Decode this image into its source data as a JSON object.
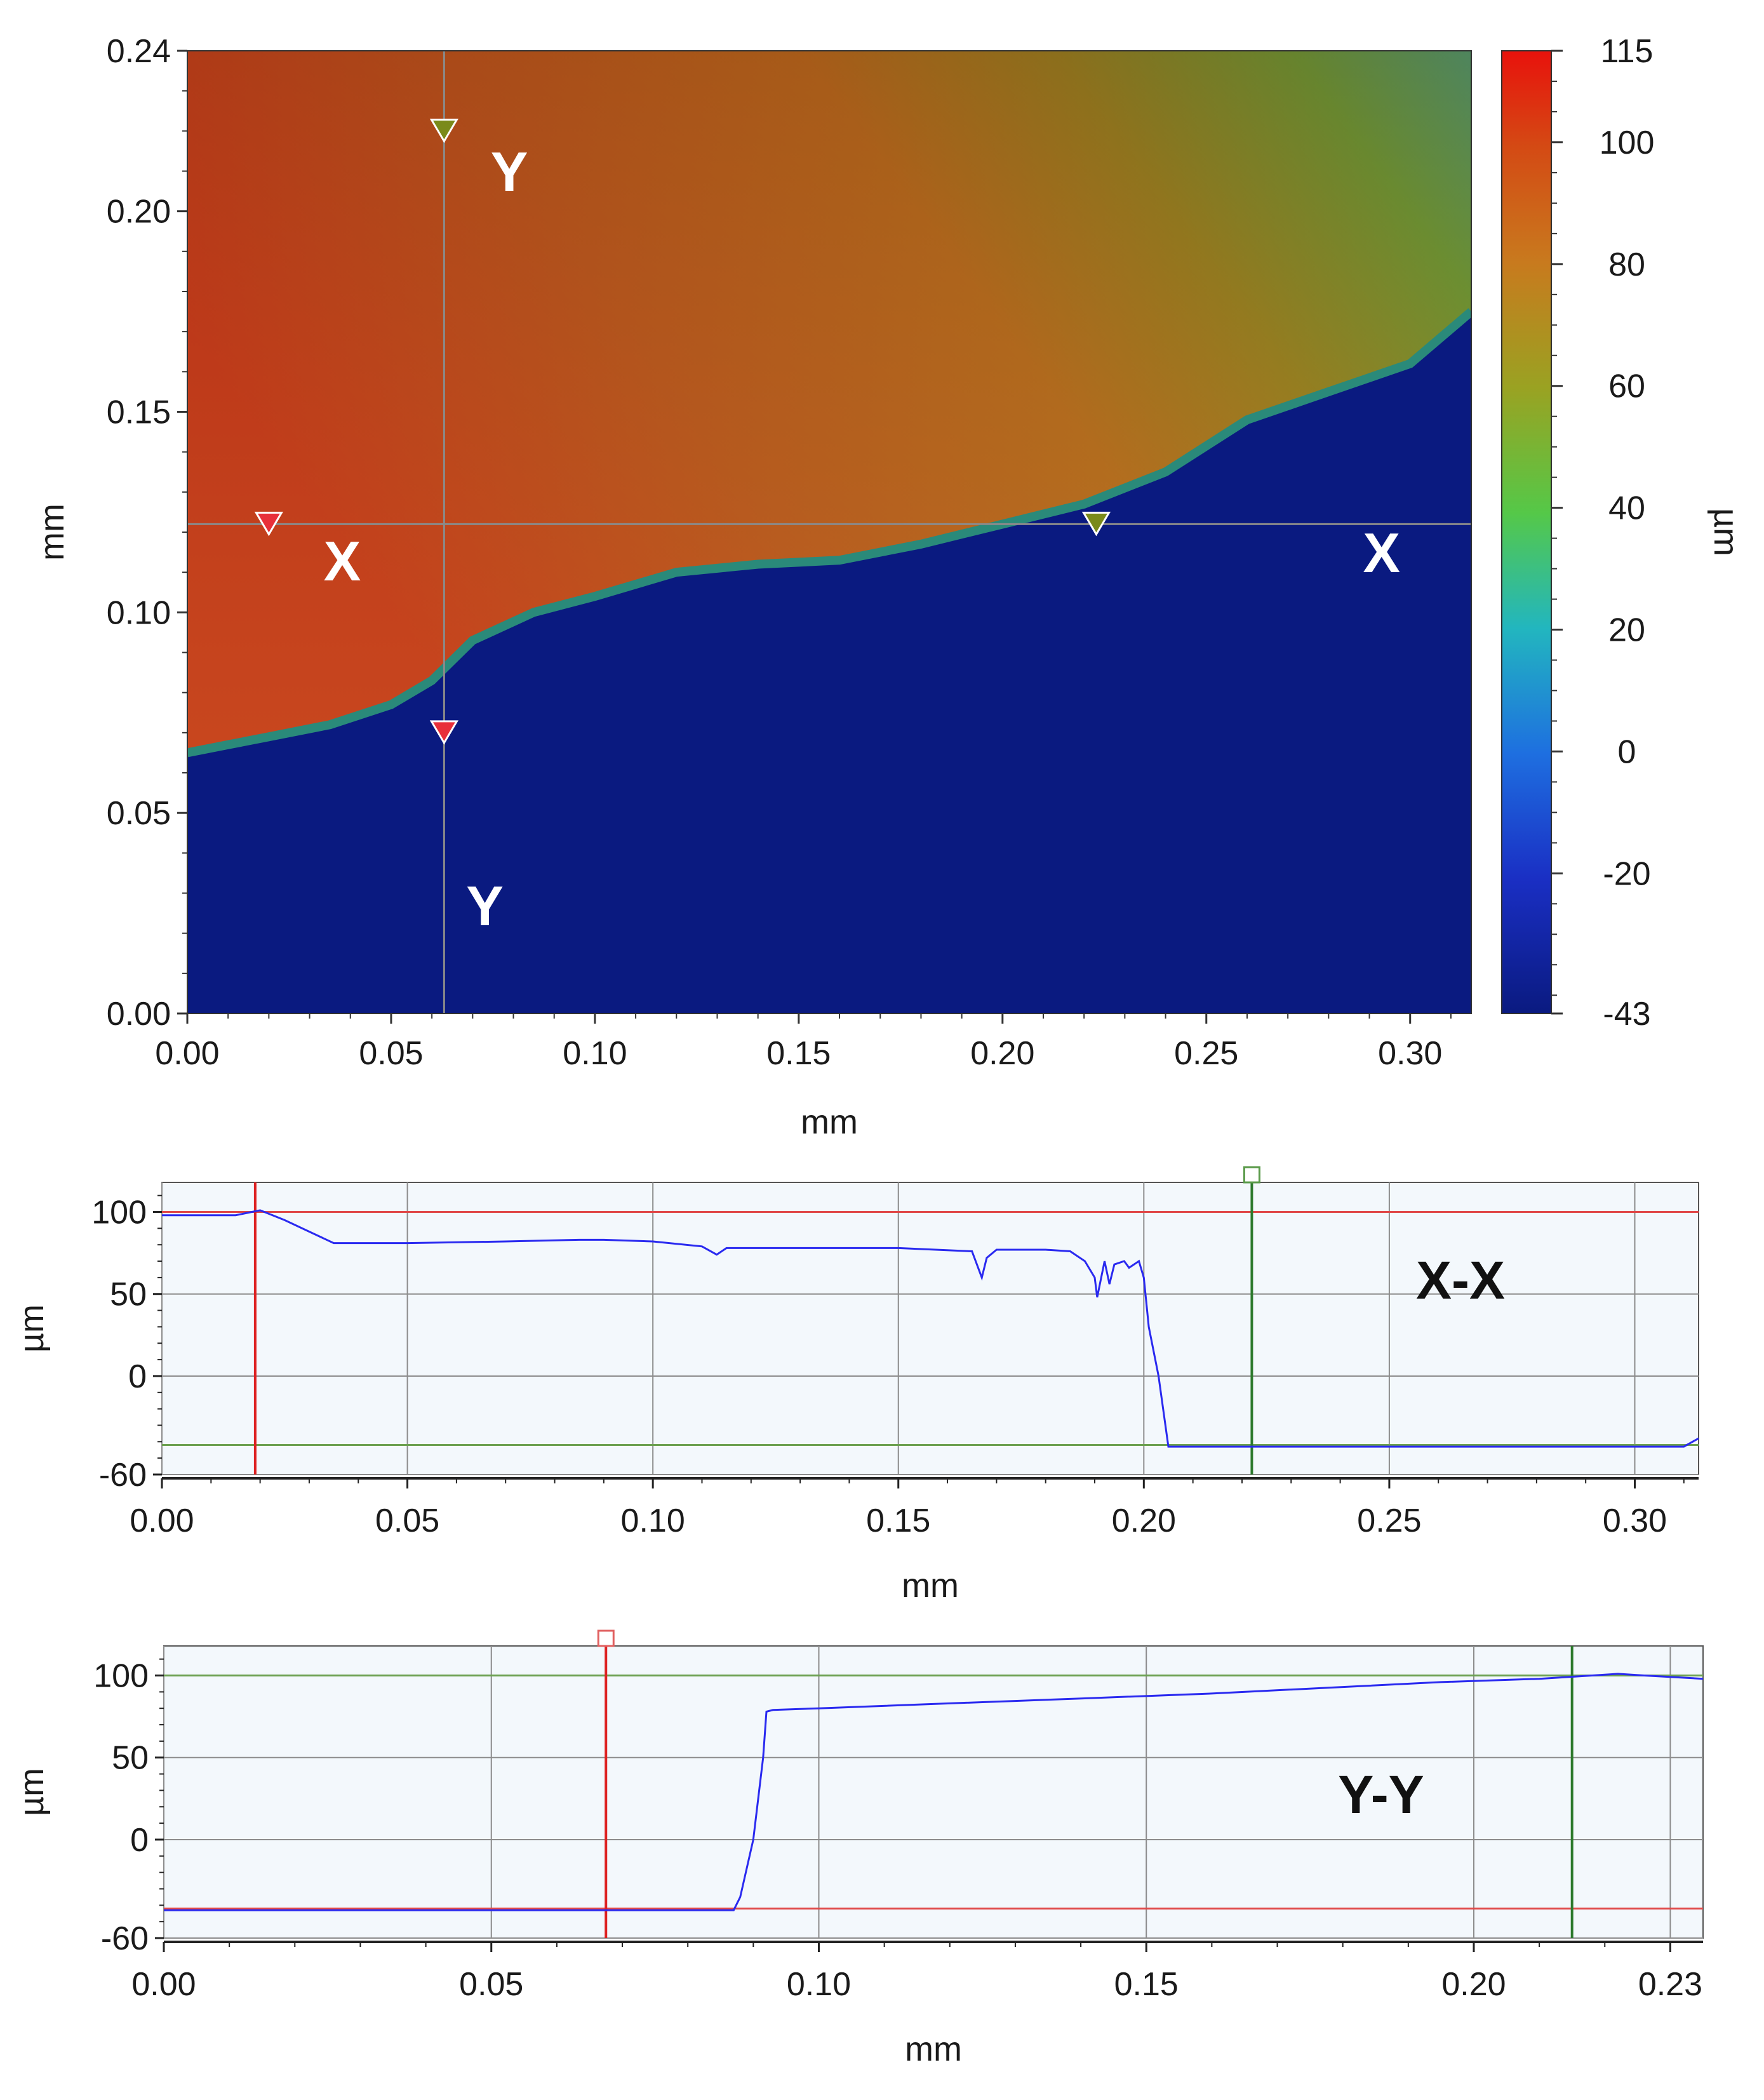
{
  "chart_data": [
    {
      "type": "heatmap",
      "title": "",
      "xlabel": "mm",
      "ylabel": "mm",
      "xlim": [
        0,
        0.315
      ],
      "ylim": [
        0,
        0.24
      ],
      "x_ticks": [
        "0.00",
        "0.05",
        "0.10",
        "0.15",
        "0.20",
        "0.25",
        "0.30"
      ],
      "y_ticks": [
        "0.00",
        "0.05",
        "0.10",
        "0.15",
        "0.20",
        "0.24"
      ],
      "colorbar": {
        "label": "µm",
        "min": -43,
        "max": 115,
        "ticks": [
          "115",
          "100",
          "80",
          "60",
          "40",
          "20",
          "0",
          "-20",
          "-43"
        ],
        "colors": [
          "#e8120c",
          "#d44a14",
          "#c87a1e",
          "#9aa222",
          "#55c848",
          "#22b6bf",
          "#1e6fe0",
          "#1a2fc4",
          "#0a1a80"
        ]
      },
      "cursor_lines": [
        {
          "name": "X",
          "axis": "y",
          "value": 0.122
        },
        {
          "name": "Y",
          "axis": "x",
          "value": 0.063
        }
      ],
      "markers": [
        {
          "line": "X",
          "x": 0.02,
          "y": 0.122,
          "color": "#e8303a"
        },
        {
          "line": "X",
          "x": 0.223,
          "y": 0.122,
          "color": "#7a8a1a"
        },
        {
          "line": "Y",
          "x": 0.063,
          "y": 0.07,
          "color": "#e8303a"
        },
        {
          "line": "Y",
          "x": 0.063,
          "y": 0.22,
          "color": "#7a8a1a"
        }
      ],
      "labels": [
        {
          "text": "X",
          "x": 0.038,
          "y": 0.108
        },
        {
          "text": "X",
          "x": 0.293,
          "y": 0.11
        },
        {
          "text": "Y",
          "x": 0.079,
          "y": 0.205
        },
        {
          "text": "Y",
          "x": 0.073,
          "y": 0.022
        }
      ],
      "edge": {
        "x": [
          0,
          0.01,
          0.02,
          0.035,
          0.05,
          0.06,
          0.07,
          0.085,
          0.1,
          0.12,
          0.14,
          0.16,
          0.18,
          0.2,
          0.22,
          0.24,
          0.26,
          0.28,
          0.3,
          0.315
        ],
        "y": [
          0.065,
          0.067,
          0.069,
          0.072,
          0.077,
          0.083,
          0.093,
          0.1,
          0.104,
          0.11,
          0.112,
          0.113,
          0.117,
          0.122,
          0.127,
          0.135,
          0.148,
          0.155,
          0.162,
          0.175
        ]
      }
    },
    {
      "type": "line",
      "title": "X-X",
      "xlabel": "mm",
      "ylabel": "µm",
      "xlim": [
        0,
        0.313
      ],
      "ylim": [
        -60,
        118
      ],
      "x_ticks": [
        "0.00",
        "0.05",
        "0.10",
        "0.15",
        "0.20",
        "0.25",
        "0.30"
      ],
      "y_ticks": [
        "100",
        "50",
        "0",
        "-60"
      ],
      "reference_lines": [
        {
          "axis": "y",
          "value": 100,
          "color": "#e04848"
        },
        {
          "axis": "y",
          "value": -42,
          "color": "#6ba050"
        },
        {
          "axis": "x",
          "value": 0.019,
          "color": "#dd2222"
        },
        {
          "axis": "x",
          "value": 0.222,
          "color": "#2d7a2d"
        }
      ],
      "handle": {
        "x": 0.222,
        "color": "#5a9a4a"
      },
      "series": [
        {
          "x": [
            0,
            0.015,
            0.02,
            0.025,
            0.03,
            0.035,
            0.05,
            0.07,
            0.085,
            0.09,
            0.1,
            0.11,
            0.113,
            0.115,
            0.13,
            0.15,
            0.165,
            0.167,
            0.168,
            0.17,
            0.175,
            0.18,
            0.185,
            0.188,
            0.19,
            0.1905,
            0.192,
            0.193,
            0.194,
            0.196,
            0.197,
            0.199,
            0.2,
            0.201,
            0.203,
            0.205,
            0.22,
            0.25,
            0.28,
            0.31,
            0.313
          ],
          "y": [
            98,
            98,
            101,
            95,
            88,
            81,
            81,
            82,
            83,
            83,
            82,
            79,
            74,
            78,
            78,
            78,
            76,
            60,
            72,
            77,
            77,
            77,
            76,
            70,
            60,
            48,
            70,
            56,
            68,
            70,
            66,
            70,
            60,
            30,
            0,
            -43,
            -43,
            -43,
            -43,
            -43,
            -38
          ]
        }
      ]
    },
    {
      "type": "line",
      "title": "Y-Y",
      "xlabel": "mm",
      "ylabel": "µm",
      "xlim": [
        0,
        0.235
      ],
      "ylim": [
        -60,
        118
      ],
      "x_ticks": [
        "0.00",
        "0.05",
        "0.10",
        "0.15",
        "0.20",
        "0.23"
      ],
      "y_ticks": [
        "100",
        "50",
        "0",
        "-60"
      ],
      "reference_lines": [
        {
          "axis": "y",
          "value": 100,
          "color": "#6ba050"
        },
        {
          "axis": "y",
          "value": -42,
          "color": "#e04848"
        },
        {
          "axis": "x",
          "value": 0.0675,
          "color": "#dd2222"
        },
        {
          "axis": "x",
          "value": 0.215,
          "color": "#2d7a2d"
        }
      ],
      "handle": {
        "x": 0.0675,
        "color": "#e06060"
      },
      "series": [
        {
          "x": [
            0,
            0.03,
            0.06,
            0.087,
            0.088,
            0.09,
            0.0915,
            0.092,
            0.093,
            0.1,
            0.12,
            0.14,
            0.16,
            0.18,
            0.195,
            0.21,
            0.222,
            0.226,
            0.235
          ],
          "y": [
            -43,
            -43,
            -43,
            -43,
            -35,
            0,
            50,
            78,
            79,
            80,
            83,
            86,
            89,
            93,
            96,
            98,
            101,
            100,
            98
          ]
        }
      ]
    }
  ]
}
